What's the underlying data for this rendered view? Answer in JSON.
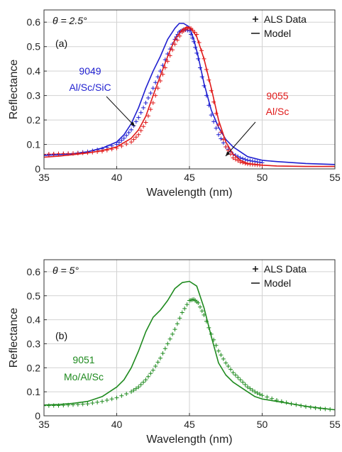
{
  "chart_data": [
    {
      "type": "line",
      "panel_label": "(a)",
      "angle_label": "θ = 2.5°",
      "xlabel": "Wavelength (nm)",
      "ylabel": "Reflectance",
      "xlim": [
        35,
        55
      ],
      "ylim": [
        0,
        0.65
      ],
      "xticks": [
        35,
        40,
        45,
        50,
        55
      ],
      "yticks": [
        0,
        0.1,
        0.2,
        0.3,
        0.4,
        0.5,
        0.6
      ],
      "grid": true,
      "legend_position": "top-right",
      "legend": [
        {
          "marker": "+",
          "label": "ALS Data"
        },
        {
          "marker": "line",
          "label": "Model"
        }
      ],
      "series": [
        {
          "color": "#1f1fd0",
          "annotation": [
            "9049",
            "Al/Sc/SiC"
          ],
          "model": {
            "x": [
              35,
              36,
              37,
              38,
              39,
              40,
              40.5,
              41,
              41.5,
              42,
              42.5,
              43,
              43.5,
              44,
              44.3,
              44.6,
              45,
              45.3,
              45.6,
              46,
              46.5,
              47,
              47.5,
              48,
              48.5,
              49,
              50,
              51,
              53,
              55
            ],
            "y": [
              0.055,
              0.058,
              0.062,
              0.07,
              0.085,
              0.11,
              0.14,
              0.185,
              0.25,
              0.33,
              0.4,
              0.46,
              0.53,
              0.575,
              0.595,
              0.595,
              0.58,
              0.53,
              0.46,
              0.35,
              0.24,
              0.17,
              0.12,
              0.09,
              0.07,
              0.05,
              0.035,
              0.03,
              0.022,
              0.018
            ]
          },
          "data": {
            "x": [
              35,
              36,
              37,
              38,
              39,
              40,
              40.5,
              41,
              41.5,
              42,
              42.5,
              43,
              43.5,
              44,
              44.3,
              44.6,
              45,
              45.3,
              45.6,
              46,
              46.5,
              47,
              47.5,
              48,
              48.5,
              49,
              49.5,
              50
            ],
            "y": [
              0.058,
              0.06,
              0.063,
              0.07,
              0.082,
              0.1,
              0.125,
              0.16,
              0.21,
              0.27,
              0.33,
              0.4,
              0.47,
              0.53,
              0.56,
              0.57,
              0.565,
              0.52,
              0.45,
              0.34,
              0.22,
              0.14,
              0.09,
              0.06,
              0.045,
              0.035,
              0.03,
              0.025
            ]
          }
        },
        {
          "color": "#e01a1a",
          "annotation": [
            "9055",
            "Al/Sc"
          ],
          "model": {
            "x": [
              35,
              36,
              37,
              38,
              39,
              40,
              41,
              41.5,
              42,
              42.5,
              43,
              43.5,
              44,
              44.5,
              44.8,
              45.1,
              45.5,
              46,
              46.5,
              47,
              47.5,
              48,
              48.5,
              49,
              50,
              51,
              53,
              55
            ],
            "y": [
              0.048,
              0.052,
              0.058,
              0.065,
              0.075,
              0.09,
              0.125,
              0.16,
              0.215,
              0.3,
              0.38,
              0.46,
              0.53,
              0.57,
              0.58,
              0.575,
              0.54,
              0.45,
              0.33,
              0.2,
              0.11,
              0.06,
              0.035,
              0.022,
              0.015,
              0.012,
              0.01,
              0.01
            ]
          },
          "data": {
            "x": [
              35,
              36,
              37,
              38,
              39,
              40,
              41,
              41.5,
              42,
              42.5,
              43,
              43.5,
              44,
              44.5,
              44.8,
              45.1,
              45.5,
              46,
              46.5,
              47,
              47.5,
              48,
              48.5,
              49,
              49.5,
              50
            ],
            "y": [
              0.06,
              0.062,
              0.063,
              0.066,
              0.072,
              0.085,
              0.11,
              0.14,
              0.19,
              0.27,
              0.36,
              0.44,
              0.51,
              0.56,
              0.575,
              0.575,
              0.55,
              0.45,
              0.32,
              0.18,
              0.09,
              0.045,
              0.028,
              0.02,
              0.017,
              0.015
            ]
          }
        }
      ]
    },
    {
      "type": "line",
      "panel_label": "(b)",
      "angle_label": "θ = 5°",
      "xlabel": "Wavelength (nm)",
      "ylabel": "Reflectance",
      "xlim": [
        35,
        55
      ],
      "ylim": [
        0,
        0.65
      ],
      "xticks": [
        35,
        40,
        45,
        50,
        55
      ],
      "yticks": [
        0,
        0.1,
        0.2,
        0.3,
        0.4,
        0.5,
        0.6
      ],
      "grid": true,
      "legend_position": "top-right",
      "legend": [
        {
          "marker": "+",
          "label": "ALS Data"
        },
        {
          "marker": "line",
          "label": "Model"
        }
      ],
      "series": [
        {
          "color": "#1e8a1e",
          "annotation": [
            "9051",
            "Mo/Al/Sc"
          ],
          "model": {
            "x": [
              35,
              36,
              37,
              38,
              39,
              40,
              40.5,
              41,
              41.5,
              42,
              42.5,
              43,
              43.5,
              44,
              44.5,
              45,
              45.5,
              46,
              46.5,
              47,
              47.5,
              48,
              48.5,
              49,
              49.5,
              50,
              51,
              52,
              53,
              54,
              55
            ],
            "y": [
              0.045,
              0.047,
              0.052,
              0.06,
              0.08,
              0.12,
              0.15,
              0.2,
              0.27,
              0.35,
              0.41,
              0.44,
              0.48,
              0.53,
              0.555,
              0.56,
              0.54,
              0.45,
              0.33,
              0.22,
              0.17,
              0.14,
              0.12,
              0.1,
              0.08,
              0.07,
              0.06,
              0.05,
              0.04,
              0.032,
              0.025
            ]
          },
          "data": {
            "x": [
              35,
              36,
              37,
              38,
              39,
              40,
              41,
              41.5,
              42,
              42.5,
              43,
              43.5,
              44,
              44.5,
              45,
              45.3,
              45.6,
              46,
              46.5,
              47,
              47.5,
              48,
              48.5,
              49,
              49.5,
              50,
              51,
              52,
              53,
              54,
              55
            ],
            "y": [
              0.042,
              0.043,
              0.046,
              0.05,
              0.06,
              0.075,
              0.1,
              0.12,
              0.15,
              0.19,
              0.24,
              0.3,
              0.36,
              0.43,
              0.48,
              0.485,
              0.47,
              0.42,
              0.34,
              0.27,
              0.22,
              0.18,
              0.15,
              0.12,
              0.1,
              0.085,
              0.065,
              0.05,
              0.038,
              0.03,
              0.025
            ]
          }
        }
      ]
    }
  ]
}
